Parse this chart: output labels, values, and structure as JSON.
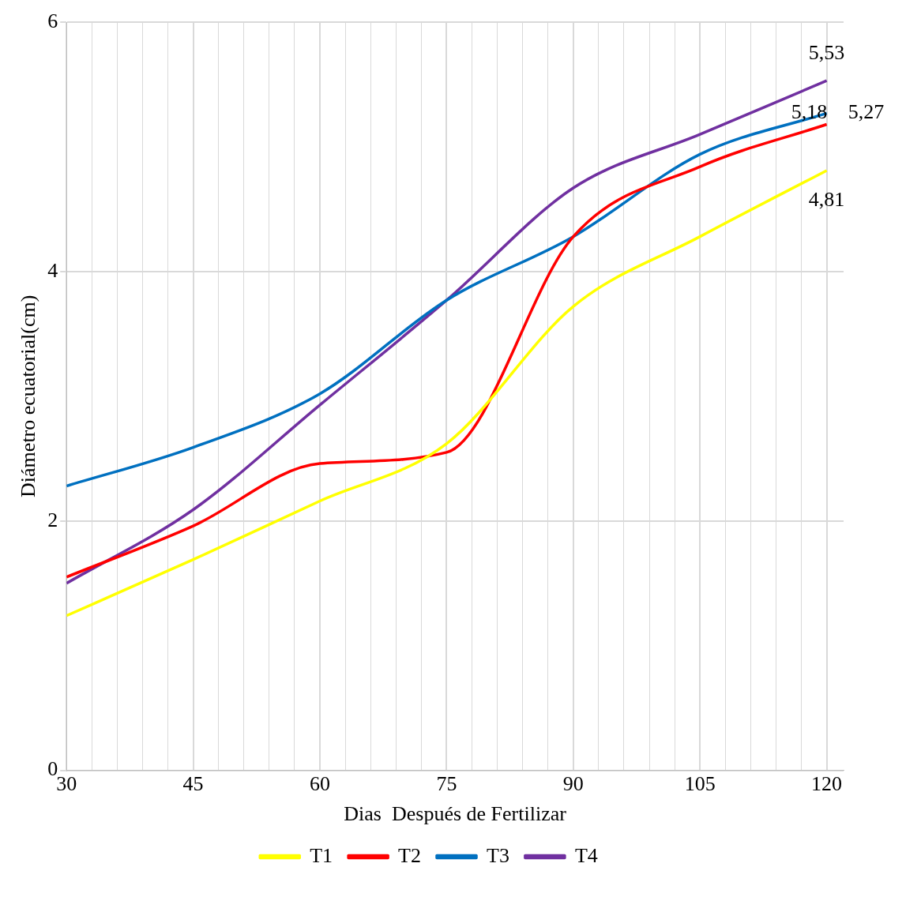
{
  "chart_data": {
    "type": "line",
    "xlabel": "Dias  Después de Fertilizar",
    "ylabel": "Diámetro ecuatorial(cm)",
    "x": [
      30,
      45,
      60,
      75,
      90,
      105,
      120
    ],
    "xlim": [
      30,
      122
    ],
    "ylim": [
      0,
      6
    ],
    "xticks": [
      30,
      {
        "value": 33,
        "label": null
      },
      {
        "value": 36,
        "label": null
      },
      {
        "value": 39,
        "label": null
      },
      {
        "value": 42,
        "label": null
      },
      45,
      {
        "value": 48,
        "label": null
      },
      {
        "value": 51,
        "label": null
      },
      {
        "value": 54,
        "label": null
      },
      {
        "value": 57,
        "label": null
      },
      60,
      {
        "value": 63,
        "label": null
      },
      {
        "value": 66,
        "label": null
      },
      {
        "value": 69,
        "label": null
      },
      {
        "value": 72,
        "label": null
      },
      75,
      {
        "value": 78,
        "label": null
      },
      {
        "value": 81,
        "label": null
      },
      {
        "value": 84,
        "label": null
      },
      {
        "value": 87,
        "label": null
      },
      90,
      {
        "value": 93,
        "label": null
      },
      {
        "value": 96,
        "label": null
      },
      {
        "value": 99,
        "label": null
      },
      {
        "value": 102,
        "label": null
      },
      105,
      {
        "value": 108,
        "label": null
      },
      {
        "value": 111,
        "label": null
      },
      {
        "value": 114,
        "label": null
      },
      {
        "value": 117,
        "label": null
      },
      120
    ],
    "yticks": [
      0,
      2,
      4,
      6
    ],
    "grid": true,
    "legend": "bottom",
    "marker": "none",
    "line_style": "solid",
    "series": [
      {
        "name": "T1",
        "color": "#ffff00",
        "values": [
          1.24,
          1.69,
          2.16,
          2.62,
          3.72,
          4.28,
          4.81
        ],
        "value_labels": [
          null,
          null,
          null,
          null,
          null,
          null,
          "4,81"
        ]
      },
      {
        "name": "T2",
        "color": "#ff0000",
        "values": [
          1.55,
          1.96,
          2.46,
          2.55,
          4.28,
          4.84,
          5.18
        ],
        "value_labels": [
          null,
          null,
          null,
          null,
          null,
          null,
          "5,18"
        ]
      },
      {
        "name": "T3",
        "color": "#0070c0",
        "values": [
          2.28,
          2.59,
          3.02,
          3.77,
          4.28,
          4.94,
          5.27
        ],
        "value_labels": [
          null,
          null,
          null,
          null,
          null,
          null,
          "5,27"
        ]
      },
      {
        "name": "T4",
        "color": "#7030a0",
        "values": [
          1.5,
          2.09,
          2.93,
          3.77,
          4.67,
          5.1,
          5.53
        ],
        "value_labels": [
          null,
          null,
          null,
          null,
          null,
          null,
          "5,53"
        ]
      }
    ]
  }
}
